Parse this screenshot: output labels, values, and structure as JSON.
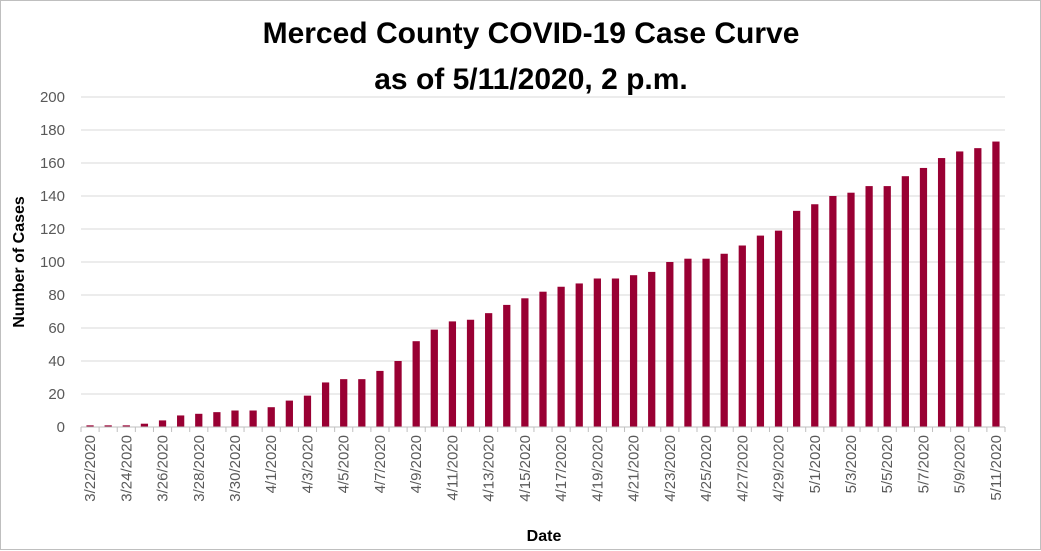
{
  "chart_data": {
    "type": "bar",
    "title": "Merced County COVID-19 Case Curve",
    "subtitle": "as of 5/11/2020, 2 p.m.",
    "xlabel": "Date",
    "ylabel": "Number of Cases",
    "ylim": [
      0,
      200
    ],
    "yticks": [
      0,
      20,
      40,
      60,
      80,
      100,
      120,
      140,
      160,
      180,
      200
    ],
    "grid": true,
    "legend": "none",
    "bar_color": "#990033",
    "categories": [
      "3/22/2020",
      "3/23/2020",
      "3/24/2020",
      "3/25/2020",
      "3/26/2020",
      "3/27/2020",
      "3/28/2020",
      "3/29/2020",
      "3/30/2020",
      "3/31/2020",
      "4/1/2020",
      "4/2/2020",
      "4/3/2020",
      "4/4/2020",
      "4/5/2020",
      "4/6/2020",
      "4/7/2020",
      "4/8/2020",
      "4/9/2020",
      "4/10/2020",
      "4/11/2020",
      "4/12/2020",
      "4/13/2020",
      "4/14/2020",
      "4/15/2020",
      "4/16/2020",
      "4/17/2020",
      "4/18/2020",
      "4/19/2020",
      "4/20/2020",
      "4/21/2020",
      "4/22/2020",
      "4/23/2020",
      "4/24/2020",
      "4/25/2020",
      "4/26/2020",
      "4/27/2020",
      "4/28/2020",
      "4/29/2020",
      "4/30/2020",
      "5/1/2020",
      "5/2/2020",
      "5/3/2020",
      "5/4/2020",
      "5/5/2020",
      "5/6/2020",
      "5/7/2020",
      "5/8/2020",
      "5/9/2020",
      "5/10/2020",
      "5/11/2020"
    ],
    "tick_labels": [
      "3/22/2020",
      "3/24/2020",
      "3/26/2020",
      "3/28/2020",
      "3/30/2020",
      "4/1/2020",
      "4/3/2020",
      "4/5/2020",
      "4/7/2020",
      "4/9/2020",
      "4/11/2020",
      "4/13/2020",
      "4/15/2020",
      "4/17/2020",
      "4/19/2020",
      "4/21/2020",
      "4/23/2020",
      "4/25/2020",
      "4/27/2020",
      "4/29/2020",
      "5/1/2020",
      "5/3/2020",
      "5/5/2020",
      "5/7/2020",
      "5/9/2020",
      "5/11/2020"
    ],
    "values": [
      1,
      1,
      1,
      2,
      4,
      7,
      8,
      9,
      10,
      10,
      12,
      16,
      19,
      27,
      29,
      29,
      34,
      40,
      52,
      59,
      64,
      65,
      69,
      74,
      78,
      82,
      85,
      87,
      90,
      90,
      92,
      94,
      100,
      102,
      102,
      105,
      110,
      116,
      119,
      131,
      135,
      140,
      142,
      146,
      146,
      152,
      157,
      163,
      167,
      169,
      173
    ]
  }
}
